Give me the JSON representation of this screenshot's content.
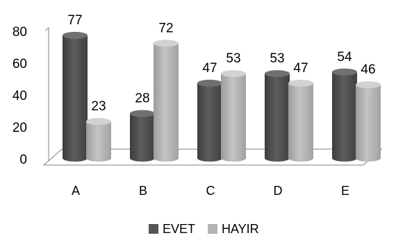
{
  "chart_data": {
    "type": "bar",
    "categories": [
      "A",
      "B",
      "C",
      "D",
      "E"
    ],
    "series": [
      {
        "name": "EVET",
        "values": [
          77,
          28,
          47,
          53,
          54
        ],
        "color": "#555555"
      },
      {
        "name": "HAYIR",
        "values": [
          23,
          72,
          53,
          47,
          46
        ],
        "color": "#b3b3b3"
      }
    ],
    "yticks": [
      0,
      20,
      40,
      60,
      80
    ],
    "ylim": [
      0,
      80
    ],
    "legend_position": "bottom",
    "grid": false,
    "title": "",
    "xlabel": "",
    "ylabel": ""
  }
}
